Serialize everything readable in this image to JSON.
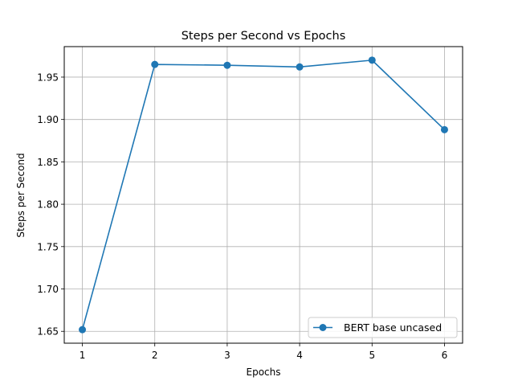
{
  "chart_data": {
    "type": "line",
    "title": "Steps per Second vs Epochs",
    "xlabel": "Epochs",
    "ylabel": "Steps per Second",
    "x": [
      1,
      2,
      3,
      4,
      5,
      6
    ],
    "series": [
      {
        "name": "BERT base uncased",
        "values": [
          1.652,
          1.965,
          1.964,
          1.962,
          1.97,
          1.888
        ],
        "color": "#1f77b4",
        "marker": "circle"
      }
    ],
    "xlim": [
      0.75,
      6.25
    ],
    "ylim": [
      1.636,
      1.986
    ],
    "xticks": [
      1,
      2,
      3,
      4,
      5,
      6
    ],
    "yticks": [
      1.65,
      1.7,
      1.75,
      1.8,
      1.85,
      1.9,
      1.95
    ],
    "grid": true,
    "legend_position": "lower-right"
  }
}
